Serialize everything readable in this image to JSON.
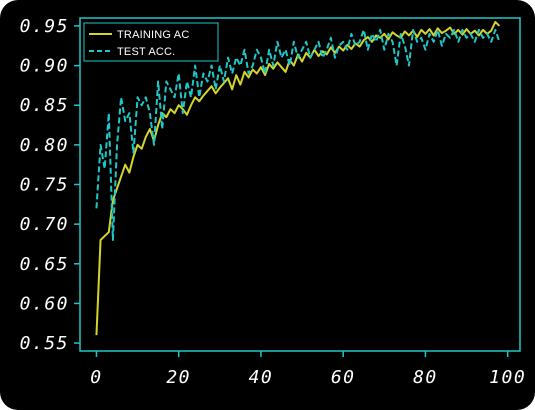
{
  "chart_data": {
    "type": "line",
    "title": "",
    "xlabel": "",
    "ylabel": "",
    "xlim": [
      -4,
      103
    ],
    "ylim": [
      0.54,
      0.96
    ],
    "xticks": [
      0,
      20,
      40,
      60,
      80,
      100
    ],
    "yticks": [
      0.55,
      0.6,
      0.65,
      0.7,
      0.75,
      0.8,
      0.85,
      0.9,
      0.95
    ],
    "xtick_labels": [
      "0",
      "20",
      "40",
      "60",
      "80",
      "100"
    ],
    "ytick_labels": [
      "0.55",
      "0.60",
      "0.65",
      "0.70",
      "0.75",
      "0.80",
      "0.85",
      "0.90",
      "0.95"
    ],
    "grid": false,
    "legend_position": "top-left",
    "x": [
      0,
      1,
      2,
      3,
      4,
      5,
      6,
      7,
      8,
      9,
      10,
      11,
      12,
      13,
      14,
      15,
      16,
      17,
      18,
      19,
      20,
      21,
      22,
      23,
      24,
      25,
      26,
      27,
      28,
      29,
      30,
      31,
      32,
      33,
      34,
      35,
      36,
      37,
      38,
      39,
      40,
      41,
      42,
      43,
      44,
      45,
      46,
      47,
      48,
      49,
      50,
      51,
      52,
      53,
      54,
      55,
      56,
      57,
      58,
      59,
      60,
      61,
      62,
      63,
      64,
      65,
      66,
      67,
      68,
      69,
      70,
      71,
      72,
      73,
      74,
      75,
      76,
      77,
      78,
      79,
      80,
      81,
      82,
      83,
      84,
      85,
      86,
      87,
      88,
      89,
      90,
      91,
      92,
      93,
      94,
      95,
      96,
      97,
      98
    ],
    "series": [
      {
        "name": "TRAINING AC",
        "color": "#d4d42a",
        "style": "solid",
        "values": [
          0.56,
          0.68,
          0.685,
          0.69,
          0.73,
          0.745,
          0.76,
          0.775,
          0.765,
          0.785,
          0.8,
          0.795,
          0.81,
          0.82,
          0.805,
          0.825,
          0.84,
          0.835,
          0.845,
          0.84,
          0.85,
          0.845,
          0.838,
          0.85,
          0.86,
          0.855,
          0.862,
          0.868,
          0.874,
          0.865,
          0.872,
          0.878,
          0.884,
          0.87,
          0.888,
          0.876,
          0.892,
          0.885,
          0.895,
          0.89,
          0.898,
          0.888,
          0.902,
          0.896,
          0.904,
          0.898,
          0.892,
          0.907,
          0.9,
          0.914,
          0.905,
          0.916,
          0.91,
          0.92,
          0.912,
          0.918,
          0.914,
          0.923,
          0.916,
          0.924,
          0.919,
          0.926,
          0.921,
          0.928,
          0.924,
          0.932,
          0.936,
          0.93,
          0.938,
          0.935,
          0.94,
          0.933,
          0.942,
          0.938,
          0.935,
          0.943,
          0.938,
          0.944,
          0.936,
          0.945,
          0.94,
          0.946,
          0.938,
          0.947,
          0.941,
          0.944,
          0.948,
          0.94,
          0.945,
          0.939,
          0.946,
          0.94,
          0.944,
          0.938,
          0.945,
          0.94,
          0.944,
          0.955,
          0.95
        ]
      },
      {
        "name": "TEST ACC.",
        "color": "#1ec8c8",
        "style": "dashed",
        "values": [
          0.72,
          0.8,
          0.77,
          0.84,
          0.68,
          0.8,
          0.86,
          0.83,
          0.84,
          0.79,
          0.86,
          0.85,
          0.86,
          0.84,
          0.8,
          0.88,
          0.82,
          0.88,
          0.87,
          0.86,
          0.89,
          0.84,
          0.88,
          0.86,
          0.9,
          0.86,
          0.89,
          0.88,
          0.9,
          0.87,
          0.9,
          0.88,
          0.91,
          0.89,
          0.91,
          0.9,
          0.92,
          0.89,
          0.9,
          0.92,
          0.91,
          0.89,
          0.92,
          0.9,
          0.93,
          0.91,
          0.92,
          0.9,
          0.93,
          0.91,
          0.92,
          0.93,
          0.91,
          0.92,
          0.93,
          0.91,
          0.92,
          0.935,
          0.91,
          0.925,
          0.93,
          0.92,
          0.94,
          0.925,
          0.93,
          0.945,
          0.92,
          0.94,
          0.93,
          0.945,
          0.92,
          0.94,
          0.93,
          0.9,
          0.94,
          0.925,
          0.9,
          0.945,
          0.93,
          0.935,
          0.92,
          0.94,
          0.93,
          0.945,
          0.925,
          0.94,
          0.935,
          0.945,
          0.93,
          0.945,
          0.935,
          0.94,
          0.93,
          0.945,
          0.935,
          0.94,
          0.93,
          0.945,
          0.93
        ]
      }
    ]
  }
}
